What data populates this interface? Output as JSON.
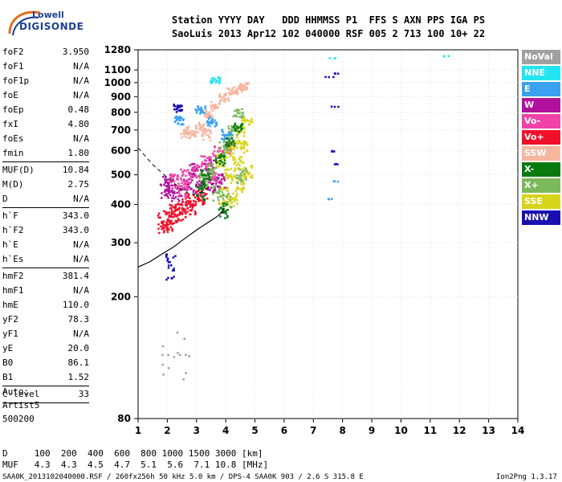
{
  "logo": {
    "top": "Lowell",
    "bottom": "DIGISONDE"
  },
  "header": {
    "line1": "Station YYYY DAY   DDD HHMMSS P1  FFS S AXN PPS IGA PS",
    "line2": "SaoLuis 2013 Apr12 102 040000 RSF 005 2 713 100 10+ 22"
  },
  "params": [
    [
      {
        "n": "foF2",
        "v": "3.950"
      },
      {
        "n": "foF1",
        "v": "N/A"
      },
      {
        "n": "foF1p",
        "v": "N/A"
      },
      {
        "n": "foE",
        "v": "N/A"
      },
      {
        "n": "foEp",
        "v": "0.48"
      },
      {
        "n": "fxI",
        "v": "4.80"
      },
      {
        "n": "foEs",
        "v": "N/A"
      },
      {
        "n": "fmin",
        "v": "1.80"
      }
    ],
    [
      {
        "n": "MUF(D)",
        "v": "10.84"
      },
      {
        "n": "M(D)",
        "v": "2.75"
      },
      {
        "n": "D",
        "v": "N/A"
      }
    ],
    [
      {
        "n": "h`F",
        "v": "343.0"
      },
      {
        "n": "h`F2",
        "v": "343.0"
      },
      {
        "n": "h`E",
        "v": "N/A"
      },
      {
        "n": "h`Es",
        "v": "N/A"
      }
    ],
    [
      {
        "n": "hmF2",
        "v": "381.4"
      },
      {
        "n": "hmF1",
        "v": "N/A"
      },
      {
        "n": "hmE",
        "v": "110.0"
      },
      {
        "n": "yF2",
        "v": "78.3"
      },
      {
        "n": "yF1",
        "v": "N/A"
      },
      {
        "n": "yE",
        "v": "20.0"
      },
      {
        "n": "B0",
        "v": "86.1"
      },
      {
        "n": "B1",
        "v": "1.52"
      }
    ],
    [
      {
        "n": "C-level",
        "v": "33"
      }
    ]
  ],
  "auto": {
    "line1": "Auto:",
    "line2": "Artist5",
    "line3": "500200"
  },
  "footer": {
    "line1": "D     100  200  400  600  800 1000 1500 3000 [km]",
    "line2": "MUF   4.3  4.3  4.5  4.7  5.1  5.6  7.1 10.8 [MHz]",
    "line3": "SAA0K_2013102040000.RSF / 260fx256h 50 kHz 5.0 km / DPS-4 SAA0K 903 / 2.6 S 315.8 E",
    "version": "Ion2Png 1.3.17"
  },
  "legend": [
    {
      "label": "NoVal",
      "color": "#a0a0a0"
    },
    {
      "label": "NNE",
      "color": "#22e5f2"
    },
    {
      "label": "E",
      "color": "#3aa1ef"
    },
    {
      "label": "W",
      "color": "#b0109c"
    },
    {
      "label": "Vo-",
      "color": "#f042a8"
    },
    {
      "label": "Vo+",
      "color": "#f0102a"
    },
    {
      "label": "SSW",
      "color": "#f6b6a0"
    },
    {
      "label": "X-",
      "color": "#0a7a10"
    },
    {
      "label": "X+",
      "color": "#7cb85c"
    },
    {
      "label": "SSE",
      "color": "#d8d41a"
    },
    {
      "label": "NNW",
      "color": "#1a10b0"
    }
  ],
  "chart_data": {
    "type": "scatter",
    "title": "",
    "xlabel": "",
    "ylabel": "",
    "xlim": [
      1,
      14
    ],
    "ylim": [
      80,
      1280
    ],
    "x_ticks": [
      1,
      2,
      3,
      4,
      5,
      6,
      7,
      8,
      9,
      10,
      11,
      12,
      13,
      14
    ],
    "y_ticks": [
      80,
      200,
      300,
      400,
      500,
      600,
      700,
      800,
      900,
      1000,
      1100,
      1280
    ],
    "y_scale": "log",
    "series": [
      {
        "name": "Vo+",
        "points": [
          [
            1.8,
            350
          ],
          [
            2.0,
            360
          ],
          [
            2.2,
            375
          ],
          [
            2.4,
            380
          ],
          [
            2.6,
            410
          ],
          [
            2.8,
            400
          ],
          [
            3.0,
            420
          ],
          [
            3.2,
            430
          ],
          [
            2.1,
            355
          ],
          [
            2.5,
            390
          ]
        ]
      },
      {
        "name": "W",
        "points": [
          [
            2.0,
            470
          ],
          [
            2.3,
            440
          ],
          [
            2.7,
            470
          ],
          [
            3.1,
            460
          ],
          [
            3.5,
            470
          ],
          [
            3.8,
            480
          ],
          [
            1.9,
            450
          ],
          [
            2.9,
            520
          ],
          [
            3.4,
            540
          ]
        ]
      },
      {
        "name": "Vo-",
        "points": [
          [
            2.2,
            480
          ],
          [
            2.6,
            500
          ],
          [
            3.0,
            520
          ],
          [
            3.3,
            560
          ],
          [
            3.7,
            600
          ],
          [
            4.0,
            620
          ],
          [
            2.5,
            455
          ],
          [
            3.6,
            500
          ]
        ]
      },
      {
        "name": "SSW",
        "points": [
          [
            2.8,
            700
          ],
          [
            3.1,
            720
          ],
          [
            3.4,
            790
          ],
          [
            3.6,
            850
          ],
          [
            3.9,
            900
          ],
          [
            4.2,
            950
          ],
          [
            4.4,
            960
          ],
          [
            4.6,
            980
          ],
          [
            2.6,
            690
          ],
          [
            3.3,
            680
          ]
        ]
      },
      {
        "name": "SSE",
        "points": [
          [
            3.8,
            560
          ],
          [
            4.1,
            600
          ],
          [
            4.3,
            640
          ],
          [
            4.5,
            700
          ],
          [
            4.7,
            760
          ],
          [
            4.7,
            520
          ],
          [
            4.5,
            470
          ],
          [
            4.2,
            420
          ],
          [
            3.9,
            430
          ],
          [
            4.4,
            550
          ],
          [
            4.6,
            620
          ],
          [
            4.1,
            500
          ]
        ]
      },
      {
        "name": "X+",
        "points": [
          [
            3.5,
            520
          ],
          [
            3.9,
            620
          ],
          [
            4.2,
            700
          ],
          [
            4.4,
            800
          ],
          [
            3.2,
            480
          ],
          [
            3.7,
            440
          ],
          [
            4.0,
            410
          ],
          [
            4.5,
            500
          ]
        ]
      },
      {
        "name": "X-",
        "points": [
          [
            3.3,
            500
          ],
          [
            3.8,
            560
          ],
          [
            4.1,
            650
          ],
          [
            4.4,
            720
          ],
          [
            3.9,
            380
          ],
          [
            3.1,
            440
          ]
        ]
      },
      {
        "name": "E",
        "points": [
          [
            2.4,
            760
          ],
          [
            3.1,
            820
          ],
          [
            3.5,
            750
          ],
          [
            4.0,
            680
          ],
          [
            7.6,
            420
          ],
          [
            7.7,
            480
          ]
        ]
      },
      {
        "name": "NNE",
        "points": [
          [
            3.6,
            1030
          ],
          [
            7.7,
            1210
          ],
          [
            11.6,
            1230
          ]
        ]
      },
      {
        "name": "NNW",
        "points": [
          [
            2.3,
            830
          ],
          [
            2.1,
            255
          ],
          [
            7.5,
            1050
          ],
          [
            7.7,
            1080
          ],
          [
            7.7,
            840
          ],
          [
            7.6,
            600
          ],
          [
            7.7,
            545
          ]
        ]
      },
      {
        "name": "NoVal",
        "points": [
          [
            1.8,
            130
          ],
          [
            2.0,
            130
          ],
          [
            2.2,
            128
          ],
          [
            2.4,
            130
          ],
          [
            2.6,
            130
          ]
        ]
      }
    ],
    "profile_curve": [
      [
        1.0,
        250
      ],
      [
        1.4,
        260
      ],
      [
        1.8,
        275
      ],
      [
        2.2,
        290
      ],
      [
        2.6,
        310
      ],
      [
        3.0,
        330
      ],
      [
        3.4,
        350
      ],
      [
        3.7,
        365
      ],
      [
        3.9,
        380
      ],
      [
        3.95,
        390
      ]
    ],
    "dashed_curve": [
      [
        1.0,
        612
      ],
      [
        1.5,
        540
      ],
      [
        2.0,
        490
      ],
      [
        2.4,
        455
      ],
      [
        2.8,
        430
      ],
      [
        3.2,
        440
      ],
      [
        3.6,
        470
      ],
      [
        3.9,
        500
      ]
    ]
  }
}
